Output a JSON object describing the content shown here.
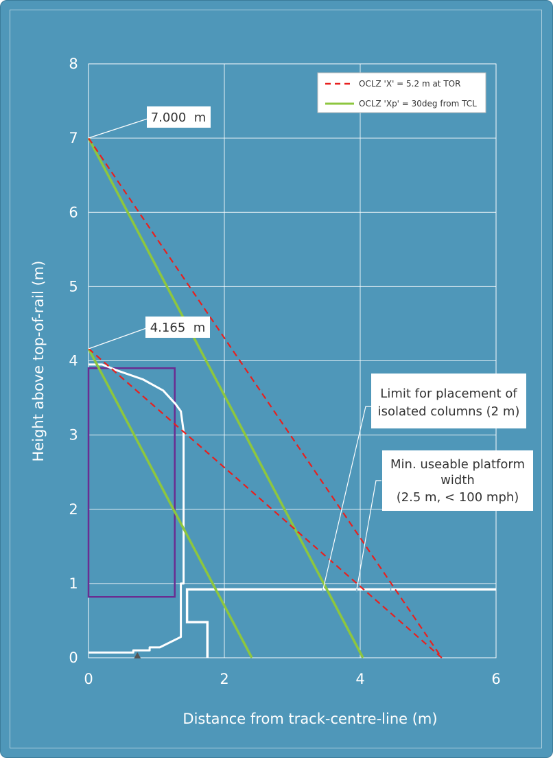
{
  "chart_data": {
    "type": "line",
    "title": "",
    "xlabel": "Distance from track-centre-line (m)",
    "ylabel": "Height above top-of-rail (m)",
    "xlim": [
      0,
      6
    ],
    "ylim": [
      0,
      8
    ],
    "x_ticks": [
      "0",
      "2",
      "4",
      "6"
    ],
    "y_ticks": [
      "0",
      "1",
      "2",
      "3",
      "4",
      "5",
      "6",
      "7",
      "8"
    ],
    "grid": true,
    "legend_position": "top-right",
    "colors": {
      "background": "#4f97b9",
      "oclz_x": "#e8201e",
      "oclz_xp": "#8dc63f",
      "gauge_box": "#6a2c91",
      "outline": "#ffffff"
    },
    "series": [
      {
        "name": "OCLZ 'X' = 5.2 m at TOR",
        "style": "dashed",
        "lines": [
          [
            [
              0,
              7.0
            ],
            [
              5.2,
              0
            ]
          ],
          [
            [
              0,
              4.165
            ],
            [
              5.2,
              0
            ]
          ]
        ]
      },
      {
        "name": "OCLZ 'Xp' = 30deg from TCL",
        "style": "solid",
        "lines": [
          [
            [
              0,
              7.0
            ],
            [
              4.04,
              0
            ]
          ],
          [
            [
              0,
              4.165
            ],
            [
              2.405,
              0
            ]
          ]
        ]
      }
    ],
    "gauge_box": [
      [
        0,
        0.82
      ],
      [
        1.27,
        0.82
      ],
      [
        1.27,
        3.9
      ],
      [
        0,
        3.9
      ]
    ],
    "vehicle_outline": [
      [
        0,
        0.07
      ],
      [
        0.66,
        0.07
      ],
      [
        0.66,
        0.1
      ],
      [
        0.9,
        0.1
      ],
      [
        0.9,
        0.14
      ],
      [
        1.05,
        0.14
      ],
      [
        1.36,
        0.28
      ],
      [
        1.36,
        1.0
      ],
      [
        1.4,
        1.0
      ],
      [
        1.4,
        3.05
      ],
      [
        1.36,
        3.32
      ],
      [
        1.28,
        3.42
      ],
      [
        1.1,
        3.6
      ],
      [
        0.8,
        3.75
      ],
      [
        0.45,
        3.86
      ],
      [
        0.2,
        3.95
      ],
      [
        0,
        3.95
      ]
    ],
    "platform_outline": [
      [
        6.0,
        0.92
      ],
      [
        1.45,
        0.92
      ],
      [
        1.45,
        0.48
      ],
      [
        1.75,
        0.48
      ],
      [
        1.75,
        0
      ]
    ],
    "platform_top_y": 0.92,
    "marker_x": 0.72,
    "platform_ticks_x": [
      3.45,
      3.95,
      4.45
    ],
    "callouts": {
      "label_7": "7.000  m",
      "label_4": "4.165  m",
      "columns_limit": [
        "Limit for placement of",
        "isolated columns (2 m)"
      ],
      "platform_width": [
        "Min. useable platform",
        "width",
        "(2.5 m, < 100 mph)"
      ]
    }
  }
}
